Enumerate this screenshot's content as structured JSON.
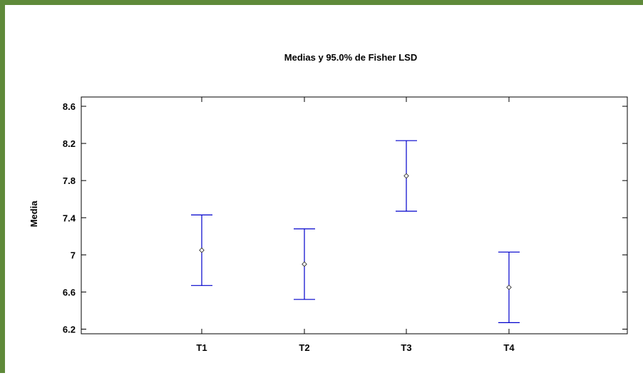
{
  "chart_data": {
    "type": "errorbar",
    "title": "Medias y 95.0% de Fisher LSD",
    "xlabel": "",
    "ylabel": "Media",
    "categories": [
      "T1",
      "T2",
      "T3",
      "T4"
    ],
    "series": [
      {
        "means": [
          7.05,
          6.9,
          7.85,
          6.65
        ],
        "lower": [
          6.67,
          6.52,
          7.47,
          6.27
        ],
        "upper": [
          7.43,
          7.28,
          8.23,
          7.03
        ]
      }
    ],
    "yticks": [
      "6.2",
      "6.6",
      "7",
      "7.4",
      "7.8",
      "8.2",
      "8.6"
    ],
    "ylim": [
      6.15,
      8.7
    ],
    "grid": false,
    "colors": {
      "errorbar": "#0000cc",
      "point": "#333333",
      "frame": "#5f8a3a",
      "axis": "#000000"
    }
  }
}
